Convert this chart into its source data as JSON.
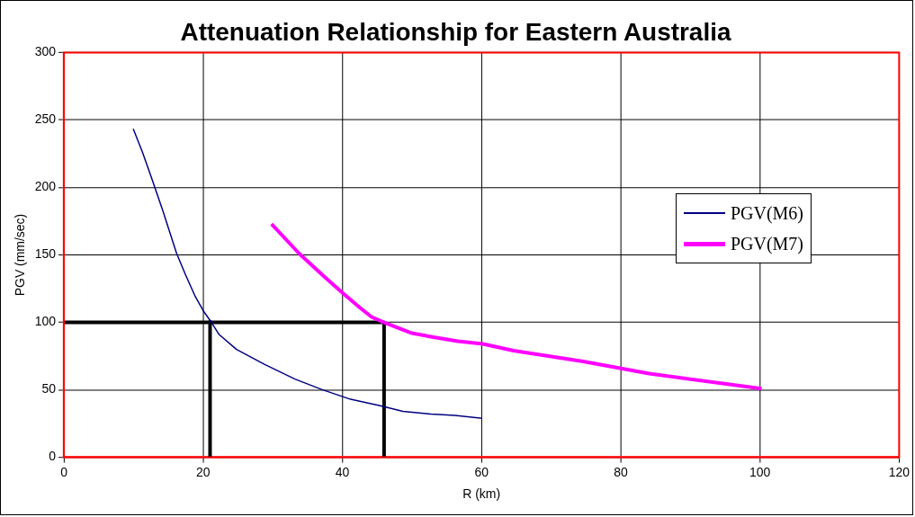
{
  "chart_data": {
    "type": "line",
    "title": "Attenuation Relationship for Eastern Australia",
    "xlabel": "R (km)",
    "ylabel": "PGV (mm/sec)",
    "xlim": [
      0,
      120
    ],
    "xticks": [
      0,
      20,
      40,
      60,
      80,
      100,
      120
    ],
    "ylim": [
      0,
      300
    ],
    "yticks": [
      0,
      50,
      100,
      150,
      200,
      250,
      300
    ],
    "grid": true,
    "legend": "right",
    "marker": "none",
    "series": [
      {
        "name": "PGV(M6)",
        "color": "#000080",
        "x": [
          10,
          11.3,
          12.6,
          14.2,
          16.2,
          17.5,
          18.8,
          20.1,
          21.2,
          22.3,
          24.8,
          28.8,
          33.2,
          37.2,
          41.2,
          45.6,
          48.7,
          52.7,
          56.2,
          60
        ],
        "values": [
          243,
          226,
          207,
          183,
          151,
          135,
          120,
          108,
          100,
          91,
          80,
          69,
          58,
          50,
          43,
          38,
          34,
          32,
          31,
          29
        ]
      },
      {
        "name": "PGV(M7)",
        "color": "#ff00ff",
        "x": [
          30,
          33.8,
          37.6,
          40,
          42.5,
          44.2,
          46,
          50,
          53.1,
          56.6,
          60.2,
          64.6,
          74.6,
          84.1,
          100
        ],
        "values": [
          172,
          151,
          133,
          122,
          111,
          104,
          100,
          92,
          89,
          86,
          84,
          79,
          71,
          62,
          51
        ]
      },
      {
        "color": "#000000",
        "x": [
          0,
          46,
          46
        ],
        "values": [
          100,
          100,
          0
        ]
      },
      {
        "color": "#000000",
        "x": [
          21,
          21
        ],
        "values": [
          100,
          0
        ]
      }
    ]
  }
}
